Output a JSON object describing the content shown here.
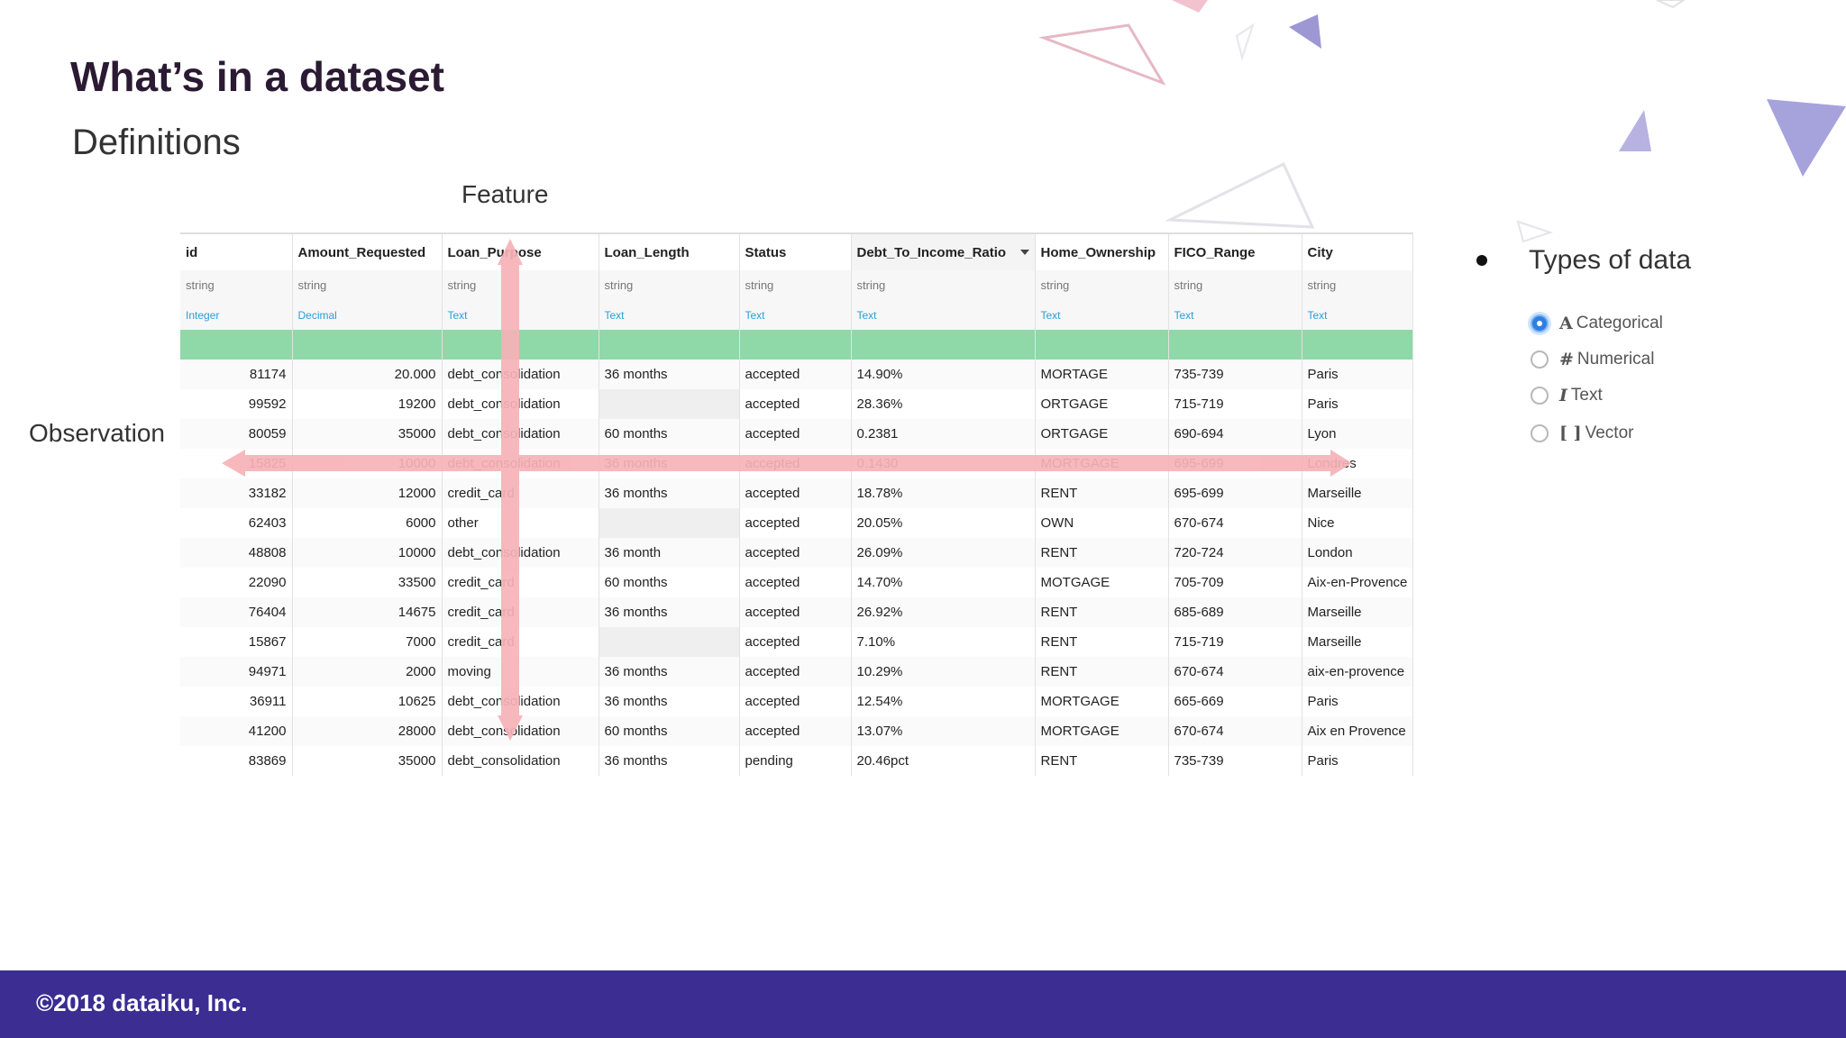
{
  "slide": {
    "title": "What’s in a dataset",
    "subtitle": "Definitions",
    "feature_label": "Feature",
    "observation_label": "Observation"
  },
  "table": {
    "columns": [
      {
        "name": "id",
        "storage": "string",
        "meaning": "Integer"
      },
      {
        "name": "Amount_Requested",
        "storage": "string",
        "meaning": "Decimal"
      },
      {
        "name": "Loan_Purpose",
        "storage": "string",
        "meaning": "Text"
      },
      {
        "name": "Loan_Length",
        "storage": "string",
        "meaning": "Text"
      },
      {
        "name": "Status",
        "storage": "string",
        "meaning": "Text"
      },
      {
        "name": "Debt_To_Income_Ratio",
        "storage": "string",
        "meaning": "Text"
      },
      {
        "name": "Home_Ownership",
        "storage": "string",
        "meaning": "Text"
      },
      {
        "name": "FICO_Range",
        "storage": "string",
        "meaning": "Text"
      },
      {
        "name": "City",
        "storage": "string",
        "meaning": "Text"
      }
    ],
    "rows": [
      [
        "81174",
        "20.000",
        "debt_consolidation",
        "36 months",
        "accepted",
        "14.90%",
        "MORTAGE",
        "735-739",
        "Paris"
      ],
      [
        "99592",
        "19200",
        "debt_consolidation",
        "",
        "accepted",
        "28.36%",
        "ORTGAGE",
        "715-719",
        "Paris"
      ],
      [
        "80059",
        "35000",
        "debt_consolidation",
        "60 months",
        "accepted",
        "0.2381",
        "ORTGAGE",
        "690-694",
        "Lyon"
      ],
      [
        "15825",
        "10000",
        "debt_consolidation",
        "36 months",
        "accepted",
        "0.1430",
        "MORTGAGE",
        "695-699",
        "Londres"
      ],
      [
        "33182",
        "12000",
        "credit_card",
        "36 months",
        "accepted",
        "18.78%",
        "RENT",
        "695-699",
        "Marseille"
      ],
      [
        "62403",
        "6000",
        "other",
        "",
        "accepted",
        "20.05%",
        "OWN",
        "670-674",
        "Nice"
      ],
      [
        "48808",
        "10000",
        "debt_consolidation",
        "36 month",
        "accepted",
        "26.09%",
        "RENT",
        "720-724",
        "London"
      ],
      [
        "22090",
        "33500",
        "credit_card",
        "60 months",
        "accepted",
        "14.70%",
        "MOTGAGE",
        "705-709",
        "Aix-en-Provence"
      ],
      [
        "76404",
        "14675",
        "credit_card",
        "36 months",
        "accepted",
        "26.92%",
        "RENT",
        "685-689",
        "Marseille"
      ],
      [
        "15867",
        "7000",
        "credit_card",
        "",
        "accepted",
        "7.10%",
        "RENT",
        "715-719",
        "Marseille"
      ],
      [
        "94971",
        "2000",
        "moving",
        "36 months",
        "accepted",
        "10.29%",
        "RENT",
        "670-674",
        "aix-en-provence"
      ],
      [
        "36911",
        "10625",
        "debt_consolidation",
        "36 months",
        "accepted",
        "12.54%",
        "MORTGAGE",
        "665-669",
        "Paris"
      ],
      [
        "41200",
        "28000",
        "debt_consolidation",
        "60 months",
        "accepted",
        "13.07%",
        "MORTGAGE",
        "670-674",
        "Aix en Provence"
      ],
      [
        "83869",
        "35000",
        "debt_consolidation",
        "36 months",
        "pending",
        "20.46pct",
        "RENT",
        "735-739",
        "Paris"
      ]
    ]
  },
  "types_panel": {
    "heading": "Types of data",
    "options": [
      {
        "glyph": "A",
        "label": "Categorical",
        "selected": true
      },
      {
        "glyph": "#",
        "label": "Numerical",
        "selected": false
      },
      {
        "glyph": "I",
        "label": "Text",
        "selected": false
      },
      {
        "glyph": "[ ]",
        "label": "Vector",
        "selected": false
      }
    ]
  },
  "footer": {
    "copyright": "©2018 dataiku, Inc."
  },
  "colors": {
    "title": "#2b1a33",
    "footer_bg": "#3b2d91",
    "arrow": "#f6b3b7",
    "validity_bar": "#8fd8a8",
    "meaning_text": "#2a9fd6"
  }
}
